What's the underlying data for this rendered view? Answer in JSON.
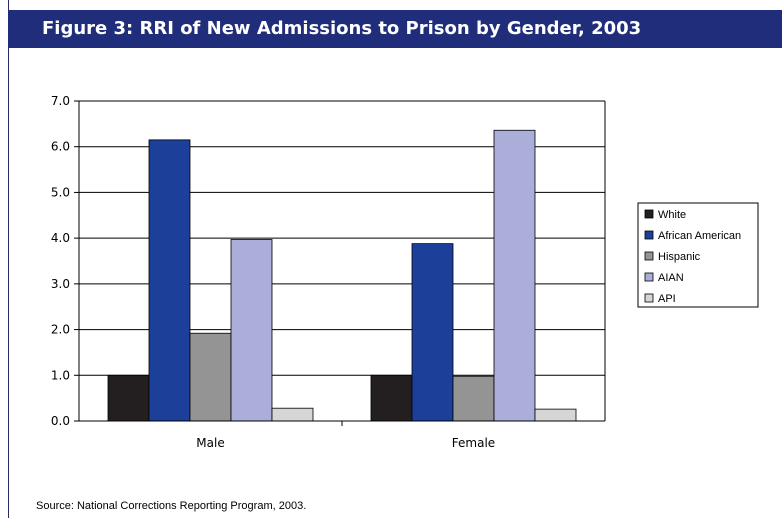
{
  "title": "Figure 3: RRI of New Admissions to Prison by Gender, 2003",
  "source": "Source: National Corrections Reporting Program, 2003.",
  "colors": {
    "banner": "#1f2d7a",
    "series": [
      "#231f20",
      "#1c3f99",
      "#949494",
      "#aaaed8",
      "#d6d6d6"
    ]
  },
  "chart_data": {
    "type": "bar",
    "title": "Figure 3: RRI of New Admissions to Prison by Gender, 2003",
    "xlabel": "",
    "ylabel": "",
    "categories": [
      "Male",
      "Female"
    ],
    "series": [
      {
        "name": "White",
        "values": [
          1.0,
          1.0
        ]
      },
      {
        "name": "African American",
        "values": [
          6.15,
          3.88
        ]
      },
      {
        "name": "Hispanic",
        "values": [
          1.92,
          0.98
        ]
      },
      {
        "name": "AIAN",
        "values": [
          3.97,
          6.36
        ]
      },
      {
        "name": "API",
        "values": [
          0.28,
          0.26
        ]
      }
    ],
    "ylim": [
      0,
      7
    ],
    "yticks": [
      "0.0",
      "1.0",
      "2.0",
      "3.0",
      "4.0",
      "5.0",
      "6.0",
      "7.0"
    ],
    "grid": true,
    "legend": "right"
  }
}
